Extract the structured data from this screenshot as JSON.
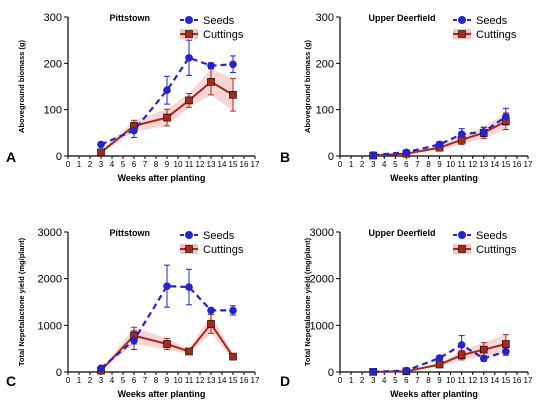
{
  "charts": [
    {
      "letter": "A",
      "chart_data": {
        "type": "line",
        "title": "Pittstown",
        "xlabel": "Weeks after planting",
        "ylabel": "Aboveground biomass (g)",
        "xlim": [
          0,
          17
        ],
        "ylim": [
          0,
          300
        ],
        "xticks": [
          0,
          1,
          2,
          3,
          4,
          5,
          6,
          7,
          8,
          9,
          10,
          11,
          12,
          13,
          14,
          15,
          16,
          17
        ],
        "yticks": [
          0,
          100,
          200,
          300
        ],
        "legend_position": "top-right",
        "series": [
          {
            "name": "Seeds",
            "x": [
              3,
              6,
              9,
              11,
              13,
              15
            ],
            "y": [
              25,
              55,
              142,
              212,
              195,
              198
            ],
            "err": [
              3,
              15,
              30,
              38,
              6,
              18
            ]
          },
          {
            "name": "Cuttings",
            "x": [
              3,
              6,
              9,
              11,
              13,
              15
            ],
            "y": [
              8,
              65,
              83,
              120,
              160,
              132
            ],
            "err": [
              3,
              12,
              18,
              15,
              28,
              35
            ]
          }
        ]
      }
    },
    {
      "letter": "B",
      "chart_data": {
        "type": "line",
        "title": "Upper Deerfield",
        "xlabel": "Weeks after planting",
        "ylabel": "Aboveground biomass (g)",
        "xlim": [
          0,
          17
        ],
        "ylim": [
          0,
          300
        ],
        "xticks": [
          0,
          1,
          2,
          3,
          4,
          5,
          6,
          7,
          8,
          9,
          10,
          11,
          12,
          13,
          14,
          15,
          16,
          17
        ],
        "yticks": [
          0,
          100,
          200,
          300
        ],
        "legend_position": "top-right",
        "series": [
          {
            "name": "Seeds",
            "x": [
              3,
              6,
              9,
              11,
              13,
              15
            ],
            "y": [
              2,
              8,
              25,
              47,
              52,
              85
            ],
            "err": [
              1,
              3,
              6,
              12,
              10,
              18
            ]
          },
          {
            "name": "Cuttings",
            "x": [
              3,
              6,
              9,
              11,
              13,
              15
            ],
            "y": [
              1,
              5,
              18,
              35,
              50,
              75
            ],
            "err": [
              1,
              2,
              5,
              10,
              12,
              18
            ]
          }
        ]
      }
    },
    {
      "letter": "C",
      "chart_data": {
        "type": "line",
        "title": "Pittstown",
        "xlabel": "Weeks after planting",
        "ylabel": "Total Nepetalactone yield (mg/plant)",
        "xlim": [
          0,
          17
        ],
        "ylim": [
          0,
          3000
        ],
        "xticks": [
          0,
          1,
          2,
          3,
          4,
          5,
          6,
          7,
          8,
          9,
          10,
          11,
          12,
          13,
          14,
          15,
          16,
          17
        ],
        "yticks": [
          0,
          1000,
          2000,
          3000
        ],
        "legend_position": "top-right",
        "series": [
          {
            "name": "Seeds",
            "x": [
              3,
              6,
              9,
              11,
              13,
              15
            ],
            "y": [
              80,
              680,
              1840,
              1820,
              1320,
              1320
            ],
            "err": [
              20,
              200,
              450,
              380,
              50,
              100
            ]
          },
          {
            "name": "Cuttings",
            "x": [
              3,
              6,
              9,
              11,
              13,
              15
            ],
            "y": [
              30,
              780,
              600,
              440,
              1030,
              330
            ],
            "err": [
              10,
              180,
              120,
              50,
              200,
              60
            ]
          }
        ]
      }
    },
    {
      "letter": "D",
      "chart_data": {
        "type": "line",
        "title": "Upper Deerfield",
        "xlabel": "Weeks after planting",
        "ylabel": "Total Nepetalactone yield (mg/plant)",
        "xlim": [
          0,
          17
        ],
        "ylim": [
          0,
          3000
        ],
        "xticks": [
          0,
          1,
          2,
          3,
          4,
          5,
          6,
          7,
          8,
          9,
          10,
          11,
          12,
          13,
          14,
          15,
          16,
          17
        ],
        "yticks": [
          0,
          1000,
          2000,
          3000
        ],
        "legend_position": "top-right",
        "series": [
          {
            "name": "Seeds",
            "x": [
              3,
              6,
              9,
              11,
              13,
              15
            ],
            "y": [
              5,
              30,
              300,
              580,
              290,
              440
            ],
            "err": [
              3,
              10,
              50,
              200,
              60,
              80
            ]
          },
          {
            "name": "Cuttings",
            "x": [
              3,
              6,
              9,
              11,
              13,
              15
            ],
            "y": [
              3,
              15,
              160,
              360,
              480,
              600
            ],
            "err": [
              2,
              5,
              40,
              100,
              150,
              200
            ]
          }
        ]
      }
    }
  ],
  "colors": {
    "seeds": "#2424c8",
    "cuttings": "#a52a1e",
    "cuttings_band": "#f3c4c4"
  }
}
